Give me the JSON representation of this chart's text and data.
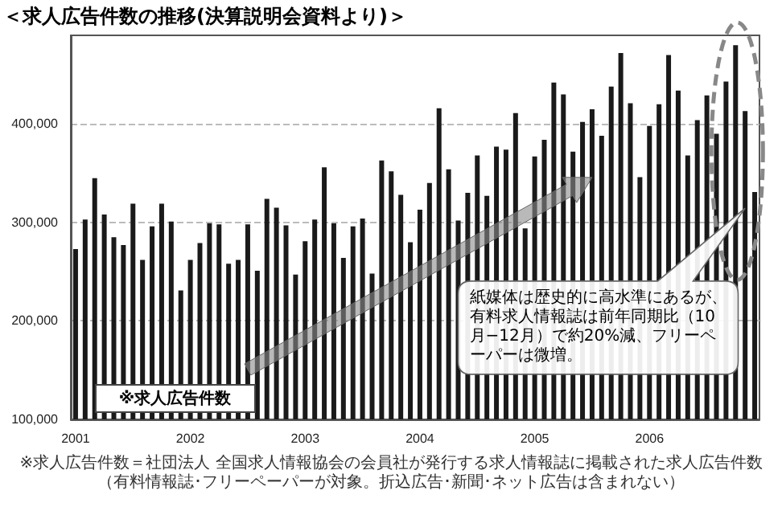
{
  "chart_data": {
    "type": "bar",
    "title": "＜求人広告件数の推移(決算説明会資料より)＞",
    "categories": [
      "2001",
      null,
      null,
      null,
      null,
      null,
      null,
      null,
      null,
      null,
      null,
      null,
      "2002",
      null,
      null,
      null,
      null,
      null,
      null,
      null,
      null,
      null,
      null,
      null,
      "2003",
      null,
      null,
      null,
      null,
      null,
      null,
      null,
      null,
      null,
      null,
      null,
      "2004",
      null,
      null,
      null,
      null,
      null,
      null,
      null,
      null,
      null,
      null,
      null,
      "2005",
      null,
      null,
      null,
      null,
      null,
      null,
      null,
      null,
      null,
      null,
      null,
      "2006",
      null,
      null,
      null,
      null,
      null,
      null,
      null,
      null,
      null,
      null,
      null
    ],
    "values": [
      273000,
      303000,
      345000,
      308000,
      285000,
      277000,
      319000,
      262000,
      296000,
      319000,
      301000,
      231000,
      262000,
      279000,
      299000,
      298000,
      258000,
      262000,
      298000,
      251000,
      324000,
      315000,
      297000,
      247000,
      281000,
      303000,
      356000,
      299000,
      264000,
      296000,
      304000,
      248000,
      363000,
      352000,
      328000,
      280000,
      313000,
      340000,
      416000,
      354000,
      302000,
      330000,
      368000,
      327000,
      377000,
      374000,
      411000,
      294000,
      367000,
      384000,
      442000,
      430000,
      372000,
      402000,
      415000,
      388000,
      438000,
      472000,
      421000,
      346000,
      398000,
      420000,
      470000,
      434000,
      368000,
      404000,
      429000,
      390000,
      443000,
      480000,
      413000,
      331000
    ],
    "color": "#1a1a1a",
    "ylim": [
      100000,
      490000
    ],
    "yticks": [
      {
        "value": 100000,
        "label": "100,000"
      },
      {
        "value": 200000,
        "label": "200,000"
      },
      {
        "value": 300000,
        "label": "300,000"
      },
      {
        "value": 400000,
        "label": "400,000"
      }
    ],
    "grid": "y",
    "annotations": [
      "※求人広告件数",
      "紙媒体は歴史的に高水準にあるが、有料求人情報誌は前年同期比（10月−12月）で約20%減、フリーペーパーは微増。",
      "※求人広告件数＝社団法人 全国求人情報協会の会員社が発行する求人情報誌に掲載された求人広告件数",
      "（有料情報誌･フリーペーパーが対象。折込広告･新聞･ネット広告は含まれない）"
    ]
  }
}
